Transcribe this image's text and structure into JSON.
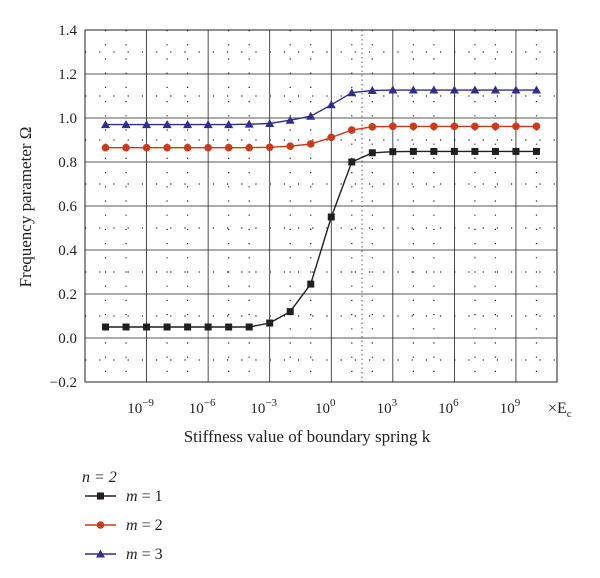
{
  "chart_data": {
    "type": "line",
    "xlabel": "Stiffness value of boundary spring k",
    "ylabel": "Frequency parameter Ω",
    "x_unit": "×E",
    "x_unit_sub": "c",
    "x_scale": "log10",
    "xlim_exp": [
      -12,
      11
    ],
    "ylim": [
      -0.2,
      1.4
    ],
    "x_ticks": [
      {
        "exp": -9,
        "label": "10",
        "sup": "−9"
      },
      {
        "exp": -6,
        "label": "10",
        "sup": "−6"
      },
      {
        "exp": -3,
        "label": "10",
        "sup": "−3"
      },
      {
        "exp": 0,
        "label": "10",
        "sup": "0"
      },
      {
        "exp": 3,
        "label": "10",
        "sup": "3"
      },
      {
        "exp": 6,
        "label": "10",
        "sup": "6"
      },
      {
        "exp": 9,
        "label": "10",
        "sup": "9"
      }
    ],
    "y_ticks": [
      "1.4",
      "1.2",
      "1.0",
      "0.8",
      "0.6",
      "0.4",
      "0.2",
      "0.0",
      "−0.2"
    ],
    "y_tick_values": [
      1.4,
      1.2,
      1.0,
      0.8,
      0.6,
      0.4,
      0.2,
      0.0,
      -0.2
    ],
    "grid": {
      "major": "solid",
      "minor": "dotted"
    },
    "legend": {
      "title": "n = 2",
      "placement": "below"
    },
    "x_exp": [
      -11,
      -10,
      -9,
      -8,
      -7,
      -6,
      -5,
      -4,
      -3,
      -2,
      -1,
      0,
      1,
      2,
      3,
      4,
      5,
      6,
      7,
      8,
      9,
      10
    ],
    "series": [
      {
        "name": "m = 1",
        "color": "#231f20",
        "marker": "square",
        "values": [
          0.05,
          0.05,
          0.05,
          0.05,
          0.05,
          0.05,
          0.05,
          0.05,
          0.068,
          0.12,
          0.245,
          0.55,
          0.8,
          0.842,
          0.847,
          0.848,
          0.848,
          0.848,
          0.848,
          0.848,
          0.848,
          0.848
        ]
      },
      {
        "name": "m = 2",
        "color": "#cc3a1a",
        "marker": "circle",
        "values": [
          0.865,
          0.865,
          0.865,
          0.865,
          0.865,
          0.865,
          0.865,
          0.865,
          0.867,
          0.872,
          0.882,
          0.912,
          0.945,
          0.96,
          0.962,
          0.962,
          0.962,
          0.962,
          0.962,
          0.962,
          0.962,
          0.962
        ]
      },
      {
        "name": "m = 3",
        "color": "#2e2e8f",
        "marker": "triangle",
        "values": [
          0.97,
          0.97,
          0.97,
          0.97,
          0.97,
          0.97,
          0.97,
          0.972,
          0.975,
          0.99,
          1.008,
          1.06,
          1.115,
          1.125,
          1.127,
          1.127,
          1.127,
          1.127,
          1.127,
          1.127,
          1.127,
          1.127
        ]
      }
    ]
  }
}
